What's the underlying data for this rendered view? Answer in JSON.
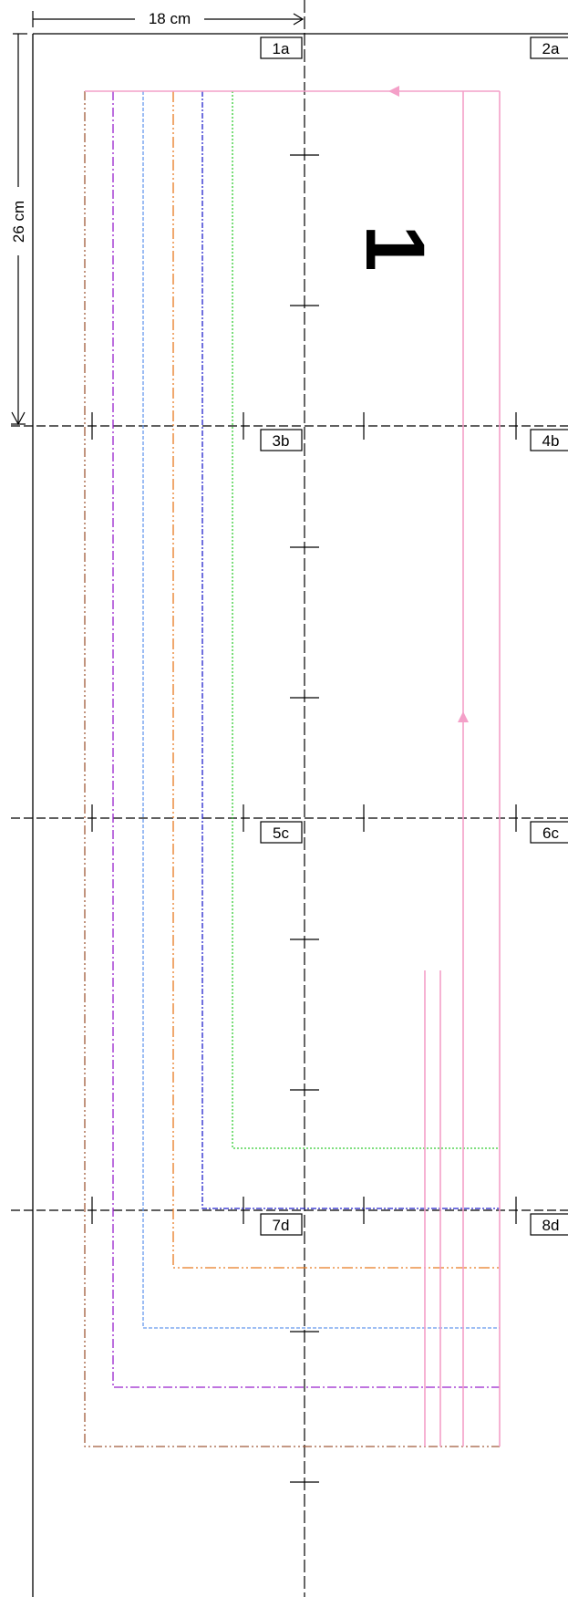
{
  "dimensions": {
    "width_label": "18 cm",
    "height_label": "26 cm"
  },
  "page_number": "1",
  "page_labels": [
    {
      "id": "1a",
      "text": "1a"
    },
    {
      "id": "2a",
      "text": "2a"
    },
    {
      "id": "3b",
      "text": "3b"
    },
    {
      "id": "4b",
      "text": "4b"
    },
    {
      "id": "5c",
      "text": "5c"
    },
    {
      "id": "6c",
      "text": "6c"
    },
    {
      "id": "7d",
      "text": "7d"
    },
    {
      "id": "8d",
      "text": "8d"
    }
  ],
  "colors": {
    "pink": "#f4a0c8",
    "green": "#33cc33",
    "blue": "#2222cc",
    "orange": "#e87a20",
    "light_blue": "#6699ee",
    "purple": "#9922cc",
    "brown": "#a05a3a",
    "black": "#000000"
  }
}
